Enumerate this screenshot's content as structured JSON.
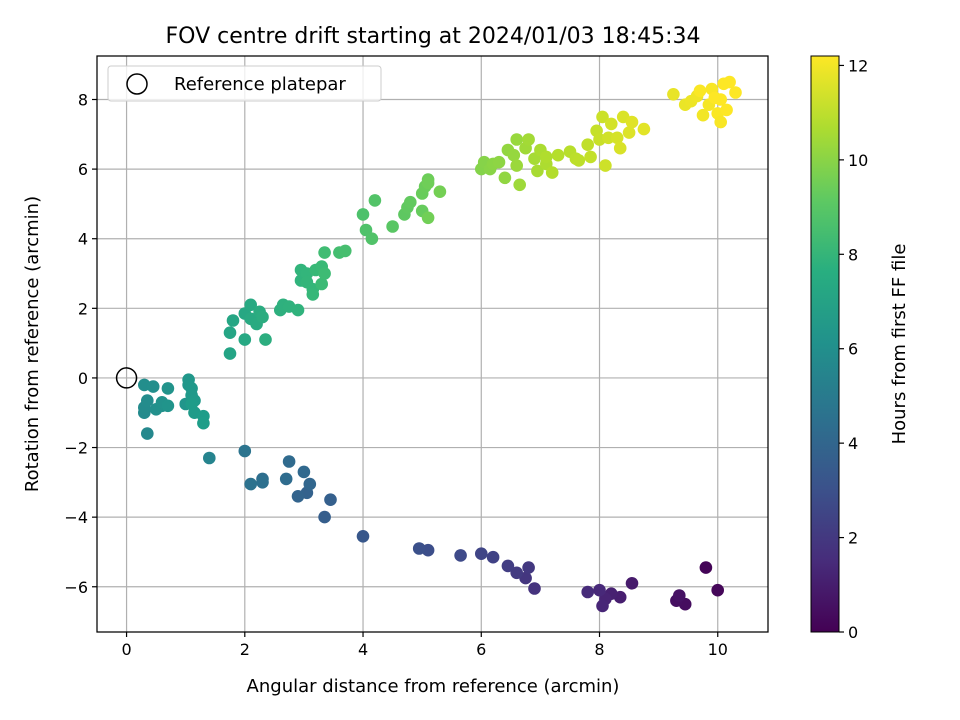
{
  "chart_data": {
    "type": "scatter",
    "title": "FOV centre drift starting at 2024/01/03 18:45:34",
    "xlabel": "Angular distance from reference (arcmin)",
    "ylabel": "Rotation from reference (arcmin)",
    "xlim": [
      -0.5,
      10.85
    ],
    "ylim": [
      -7.3,
      9.25
    ],
    "xticks": [
      0,
      2,
      4,
      6,
      8,
      10
    ],
    "yticks": [
      -6,
      -4,
      -2,
      0,
      2,
      4,
      6,
      8
    ],
    "grid": true,
    "legend": {
      "position": "top-left",
      "entries": [
        "Reference platepar"
      ]
    },
    "reference_point": {
      "x": 0,
      "y": 0,
      "label": "Reference platepar"
    },
    "colorbar": {
      "label": "Hours from first FF file",
      "colormap": "viridis",
      "range": [
        0,
        12.2
      ],
      "ticks": [
        0,
        2,
        4,
        6,
        8,
        10,
        12
      ]
    },
    "points": [
      [
        9.8,
        -5.45,
        0.1
      ],
      [
        10.0,
        -6.1,
        0.2
      ],
      [
        9.45,
        -6.5,
        0.4
      ],
      [
        9.3,
        -6.4,
        0.5
      ],
      [
        9.35,
        -6.25,
        0.6
      ],
      [
        8.55,
        -5.9,
        0.9
      ],
      [
        8.35,
        -6.3,
        1.0
      ],
      [
        8.2,
        -6.2,
        1.1
      ],
      [
        8.1,
        -6.35,
        1.2
      ],
      [
        8.05,
        -6.55,
        1.3
      ],
      [
        8.0,
        -6.1,
        1.4
      ],
      [
        7.8,
        -6.15,
        1.5
      ],
      [
        6.9,
        -6.05,
        1.8
      ],
      [
        6.75,
        -5.75,
        1.9
      ],
      [
        6.8,
        -5.45,
        2.0
      ],
      [
        6.6,
        -5.6,
        2.1
      ],
      [
        6.45,
        -5.4,
        2.2
      ],
      [
        6.2,
        -5.15,
        2.4
      ],
      [
        6.0,
        -5.05,
        2.5
      ],
      [
        5.65,
        -5.1,
        2.7
      ],
      [
        5.1,
        -4.95,
        2.9
      ],
      [
        4.95,
        -4.9,
        3.0
      ],
      [
        4.0,
        -4.55,
        3.3
      ],
      [
        3.35,
        -4.0,
        3.6
      ],
      [
        3.45,
        -3.5,
        3.7
      ],
      [
        3.05,
        -3.3,
        3.8
      ],
      [
        2.9,
        -3.4,
        3.9
      ],
      [
        3.1,
        -3.05,
        4.0
      ],
      [
        3.0,
        -2.7,
        4.1
      ],
      [
        2.75,
        -2.4,
        4.2
      ],
      [
        2.7,
        -2.9,
        4.3
      ],
      [
        2.3,
        -2.9,
        4.4
      ],
      [
        2.3,
        -3.0,
        4.5
      ],
      [
        2.1,
        -3.05,
        4.6
      ],
      [
        2.0,
        -2.1,
        4.7
      ],
      [
        1.4,
        -2.3,
        5.5
      ],
      [
        0.35,
        -1.6,
        5.7
      ],
      [
        0.3,
        -1.0,
        5.8
      ],
      [
        0.3,
        -0.85,
        5.85
      ],
      [
        0.35,
        -0.65,
        5.9
      ],
      [
        0.3,
        -0.2,
        6.0
      ],
      [
        0.45,
        -0.25,
        6.05
      ],
      [
        0.5,
        -0.9,
        6.1
      ],
      [
        0.6,
        -0.8,
        6.15
      ],
      [
        0.6,
        -0.7,
        6.2
      ],
      [
        0.7,
        -0.3,
        6.25
      ],
      [
        0.7,
        -0.8,
        6.3
      ],
      [
        1.0,
        -0.75,
        6.35
      ],
      [
        1.05,
        -0.2,
        6.4
      ],
      [
        1.05,
        -0.05,
        6.45
      ],
      [
        1.1,
        -0.3,
        6.5
      ],
      [
        1.1,
        -0.5,
        6.55
      ],
      [
        1.15,
        -0.65,
        6.6
      ],
      [
        1.15,
        -1.0,
        6.65
      ],
      [
        1.1,
        -0.75,
        6.7
      ],
      [
        1.3,
        -1.1,
        6.75
      ],
      [
        1.3,
        -1.3,
        6.8
      ],
      [
        1.75,
        0.7,
        7.1
      ],
      [
        1.75,
        1.3,
        7.15
      ],
      [
        1.8,
        1.65,
        7.2
      ],
      [
        2.0,
        1.85,
        7.25
      ],
      [
        2.0,
        1.1,
        7.3
      ],
      [
        2.1,
        2.1,
        7.35
      ],
      [
        2.1,
        1.7,
        7.4
      ],
      [
        2.2,
        1.55,
        7.45
      ],
      [
        2.25,
        1.9,
        7.5
      ],
      [
        2.3,
        1.75,
        7.55
      ],
      [
        2.35,
        1.1,
        7.6
      ],
      [
        2.6,
        1.95,
        7.7
      ],
      [
        2.65,
        2.1,
        7.75
      ],
      [
        2.75,
        2.05,
        7.8
      ],
      [
        2.9,
        1.95,
        7.85
      ],
      [
        2.95,
        2.8,
        7.9
      ],
      [
        2.95,
        3.1,
        7.95
      ],
      [
        3.05,
        3.0,
        8.0
      ],
      [
        3.05,
        2.75,
        8.05
      ],
      [
        3.15,
        2.55,
        8.1
      ],
      [
        3.15,
        2.4,
        8.15
      ],
      [
        3.2,
        3.1,
        8.2
      ],
      [
        3.3,
        3.2,
        8.25
      ],
      [
        3.3,
        2.7,
        8.3
      ],
      [
        3.35,
        3.0,
        8.35
      ],
      [
        3.35,
        3.6,
        8.4
      ],
      [
        3.6,
        3.6,
        8.5
      ],
      [
        3.7,
        3.65,
        8.55
      ],
      [
        4.0,
        4.7,
        8.7
      ],
      [
        4.05,
        4.25,
        8.75
      ],
      [
        4.15,
        4.0,
        8.8
      ],
      [
        4.2,
        5.1,
        8.85
      ],
      [
        4.5,
        4.35,
        9.0
      ],
      [
        4.7,
        4.7,
        9.1
      ],
      [
        4.75,
        4.9,
        9.15
      ],
      [
        4.8,
        5.05,
        9.2
      ],
      [
        5.0,
        4.8,
        9.3
      ],
      [
        5.0,
        5.3,
        9.35
      ],
      [
        5.05,
        5.5,
        9.4
      ],
      [
        5.1,
        5.7,
        9.45
      ],
      [
        5.1,
        5.6,
        9.5
      ],
      [
        5.1,
        4.6,
        9.55
      ],
      [
        5.3,
        5.35,
        9.6
      ],
      [
        6.0,
        6.0,
        9.9
      ],
      [
        6.05,
        6.2,
        9.95
      ],
      [
        6.15,
        6.0,
        10.0
      ],
      [
        6.2,
        6.15,
        10.05
      ],
      [
        6.3,
        6.2,
        10.1
      ],
      [
        6.4,
        5.75,
        10.15
      ],
      [
        6.45,
        6.55,
        10.2
      ],
      [
        6.55,
        6.4,
        10.25
      ],
      [
        6.6,
        6.85,
        10.3
      ],
      [
        6.6,
        6.1,
        10.35
      ],
      [
        6.65,
        5.55,
        10.4
      ],
      [
        6.75,
        6.6,
        10.45
      ],
      [
        6.8,
        6.85,
        10.5
      ],
      [
        6.9,
        6.3,
        10.55
      ],
      [
        6.95,
        5.95,
        10.6
      ],
      [
        7.0,
        6.55,
        10.65
      ],
      [
        7.1,
        6.15,
        10.7
      ],
      [
        7.1,
        6.35,
        10.75
      ],
      [
        7.2,
        5.9,
        10.8
      ],
      [
        7.3,
        6.4,
        10.85
      ],
      [
        7.5,
        6.5,
        10.9
      ],
      [
        7.6,
        6.3,
        10.95
      ],
      [
        7.65,
        6.25,
        11.0
      ],
      [
        7.8,
        6.7,
        11.05
      ],
      [
        7.85,
        6.35,
        11.1
      ],
      [
        7.95,
        7.1,
        11.15
      ],
      [
        8.0,
        6.85,
        11.2
      ],
      [
        8.05,
        7.5,
        11.25
      ],
      [
        8.1,
        6.1,
        11.3
      ],
      [
        8.15,
        6.9,
        11.35
      ],
      [
        8.2,
        7.3,
        11.4
      ],
      [
        8.3,
        6.9,
        11.45
      ],
      [
        8.35,
        6.6,
        11.5
      ],
      [
        8.4,
        7.5,
        11.55
      ],
      [
        8.5,
        7.05,
        11.6
      ],
      [
        8.55,
        7.35,
        11.65
      ],
      [
        8.75,
        7.15,
        11.7
      ],
      [
        9.25,
        8.15,
        11.8
      ],
      [
        9.45,
        7.85,
        11.85
      ],
      [
        9.55,
        7.95,
        11.9
      ],
      [
        9.65,
        8.1,
        11.95
      ],
      [
        9.75,
        7.55,
        12.0
      ],
      [
        9.85,
        7.85,
        12.05
      ],
      [
        9.9,
        8.3,
        12.1
      ],
      [
        10.0,
        7.6,
        12.15
      ],
      [
        10.05,
        8.0,
        12.2
      ],
      [
        10.1,
        8.45,
        12.2
      ],
      [
        10.2,
        8.5,
        12.2
      ],
      [
        10.3,
        8.2,
        12.2
      ],
      [
        10.15,
        7.7,
        12.2
      ],
      [
        9.95,
        8.05,
        12.2
      ],
      [
        9.7,
        8.25,
        12.15
      ],
      [
        10.05,
        7.35,
        12.1
      ]
    ]
  }
}
